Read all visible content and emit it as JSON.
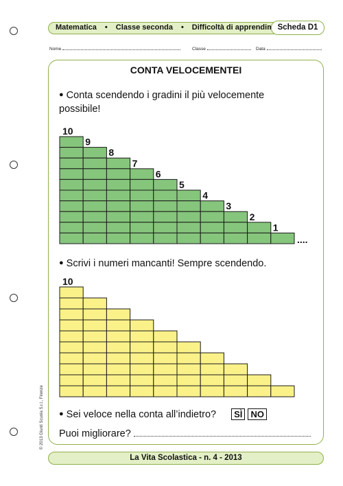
{
  "header": {
    "subject": "Matematica",
    "grade": "Classe seconda",
    "topic": "Difficoltà di apprendimento",
    "sheet_label": "Scheda D1"
  },
  "fields": {
    "name_label": "Nome",
    "class_label": "Classe",
    "date_label": "Data"
  },
  "title": "CONTA VELOCEMENTEI",
  "exercise1": {
    "instruction_line1": "Conta scendendo i gradini il più velocemente",
    "instruction_line2": "possibile!",
    "step_numbers": [
      "10",
      "9",
      "8",
      "7",
      "6",
      "5",
      "4",
      "3",
      "2",
      "1"
    ],
    "trailing": "...."
  },
  "exercise2": {
    "instruction": "Scrivi i numeri mancanti! Sempre scendendo.",
    "start_number": "10"
  },
  "question": {
    "text": "Sei veloce nella conta all’indietro?",
    "yes": "SÌ",
    "no": "NO"
  },
  "improve": {
    "text": "Puoi migliorare?"
  },
  "copyright": "© 2013 Giunti Scuola S.r.l., Firenze",
  "footer": "La Vita Scolastica - n. 4 - 2013",
  "colors": {
    "accent_green": "#8fb04a",
    "band_fill": "#e3efc6",
    "green_step": "#86c57c",
    "yellow_step": "#fbf189",
    "stroke": "#1a1a1a"
  }
}
